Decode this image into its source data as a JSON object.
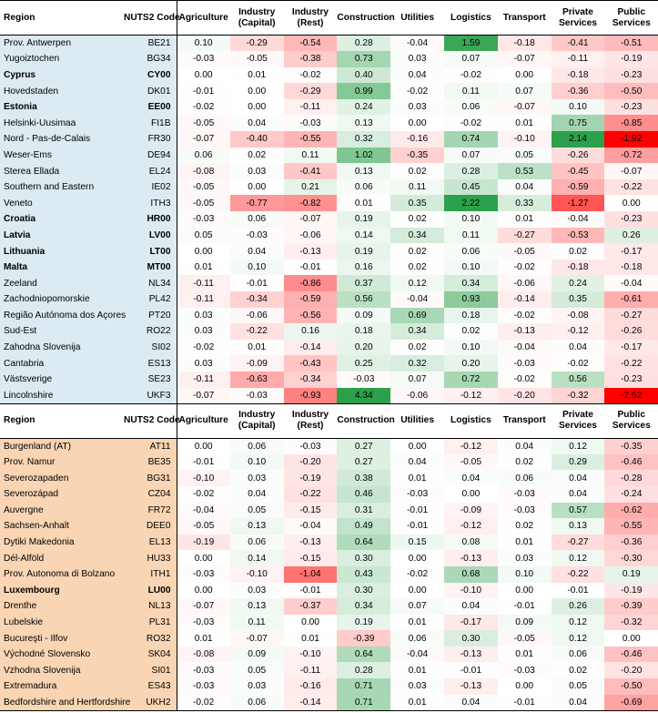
{
  "headers": [
    "Region",
    "NUTS2 Code",
    "Agriculture",
    "Industry (Capital)",
    "Industry (Rest)",
    "Construction",
    "Utilities",
    "Logistics",
    "Transport",
    "Private Services",
    "Public Services"
  ],
  "colors": {
    "positive": "#2ca04a",
    "negative": "#ff0000",
    "panel1_label_bg": "#dcebf1",
    "panel2_label_bg": "#f9d5b4"
  },
  "panel1": [
    {
      "region": "Prov. Antwerpen",
      "code": "BE21",
      "bold": false,
      "values": [
        "0.10",
        "-0.29",
        "-0.54",
        "0.28",
        "-0.04",
        "1.59",
        "-0.18",
        "-0.41",
        "-0.51"
      ]
    },
    {
      "region": "Yugoiztochen",
      "code": "BG34",
      "bold": false,
      "values": [
        "-0.03",
        "-0.05",
        "-0.38",
        "0.73",
        "0.03",
        "0.07",
        "-0.07",
        "-0.11",
        "-0.19"
      ]
    },
    {
      "region": "Cyprus",
      "code": "CY00",
      "bold": true,
      "values": [
        "0.00",
        "0.01",
        "-0.02",
        "0.40",
        "0.04",
        "-0.02",
        "0.00",
        "-0.18",
        "-0.23"
      ]
    },
    {
      "region": "Hovedstaden",
      "code": "DK01",
      "bold": false,
      "values": [
        "-0.01",
        "0.00",
        "-0.29",
        "0.99",
        "-0.02",
        "0.11",
        "0.07",
        "-0.36",
        "-0.50"
      ]
    },
    {
      "region": "Estonia",
      "code": "EE00",
      "bold": true,
      "values": [
        "-0.02",
        "0.00",
        "-0.11",
        "0.24",
        "0.03",
        "0.06",
        "-0.07",
        "0.10",
        "-0.23"
      ]
    },
    {
      "region": "Helsinki-Uusimaa",
      "code": "FI1B",
      "bold": false,
      "values": [
        "-0.05",
        "0.04",
        "-0.03",
        "0.13",
        "0.00",
        "-0.02",
        "0.01",
        "0.75",
        "-0.85"
      ]
    },
    {
      "region": "Nord - Pas-de-Calais",
      "code": "FR30",
      "bold": false,
      "values": [
        "-0.07",
        "-0.40",
        "-0.55",
        "0.32",
        "-0.16",
        "0.74",
        "-0.10",
        "2.14",
        "-1.92"
      ]
    },
    {
      "region": "Weser-Ems",
      "code": "DE94",
      "bold": false,
      "values": [
        "0.06",
        "0.02",
        "0.11",
        "1.02",
        "-0.35",
        "0.07",
        "0.05",
        "-0.26",
        "-0.72"
      ]
    },
    {
      "region": "Sterea Ellada",
      "code": "EL24",
      "bold": false,
      "values": [
        "-0.08",
        "0.03",
        "-0.41",
        "0.13",
        "0.02",
        "0.28",
        "0.53",
        "-0.45",
        "-0.07"
      ]
    },
    {
      "region": "Southern and Eastern",
      "code": "IE02",
      "bold": false,
      "values": [
        "-0.05",
        "0.00",
        "0.21",
        "0.06",
        "0.11",
        "0.45",
        "0.04",
        "-0.59",
        "-0.22"
      ]
    },
    {
      "region": "Veneto",
      "code": "ITH3",
      "bold": false,
      "values": [
        "-0.05",
        "-0.77",
        "-0.82",
        "0.01",
        "0.35",
        "2.22",
        "0.33",
        "-1.27",
        "0.00"
      ]
    },
    {
      "region": "Croatia",
      "code": "HR00",
      "bold": true,
      "values": [
        "-0.03",
        "0.06",
        "-0.07",
        "0.19",
        "0.02",
        "0.10",
        "0.01",
        "-0.04",
        "-0.23"
      ]
    },
    {
      "region": "Latvia",
      "code": "LV00",
      "bold": true,
      "values": [
        "0.05",
        "-0.03",
        "-0.06",
        "0.14",
        "0.34",
        "0.11",
        "-0.27",
        "-0.53",
        "0.26"
      ]
    },
    {
      "region": "Lithuania",
      "code": "LT00",
      "bold": true,
      "values": [
        "0.00",
        "0.04",
        "-0.13",
        "0.19",
        "0.02",
        "0.06",
        "-0.05",
        "0.02",
        "-0.17"
      ]
    },
    {
      "region": "Malta",
      "code": "MT00",
      "bold": true,
      "values": [
        "0.01",
        "0.10",
        "-0.01",
        "0.16",
        "0.02",
        "0.10",
        "-0.02",
        "-0.18",
        "-0.18"
      ]
    },
    {
      "region": "Zeeland",
      "code": "NL34",
      "bold": false,
      "values": [
        "-0.11",
        "-0.01",
        "-0.86",
        "0.37",
        "0.12",
        "0.34",
        "-0.06",
        "0.24",
        "-0.04"
      ]
    },
    {
      "region": "Zachodniopomorskie",
      "code": "PL42",
      "bold": false,
      "values": [
        "-0.11",
        "-0.34",
        "-0.59",
        "0.56",
        "-0.04",
        "0.93",
        "-0.14",
        "0.35",
        "-0.61"
      ]
    },
    {
      "region": "Região Autónoma dos Açores",
      "code": "PT20",
      "bold": false,
      "values": [
        "0.03",
        "-0.06",
        "-0.56",
        "0.09",
        "0.69",
        "0.18",
        "-0.02",
        "-0.08",
        "-0.27"
      ]
    },
    {
      "region": "Sud-Est",
      "code": "RO22",
      "bold": false,
      "values": [
        "0.03",
        "-0.22",
        "0.16",
        "0.18",
        "0.34",
        "0.02",
        "-0.13",
        "-0.12",
        "-0.26"
      ]
    },
    {
      "region": "Zahodna Slovenija",
      "code": "SI02",
      "bold": false,
      "values": [
        "-0.02",
        "0.01",
        "-0.14",
        "0.20",
        "0.02",
        "0.10",
        "-0.04",
        "0.04",
        "-0.17"
      ]
    },
    {
      "region": "Cantabria",
      "code": "ES13",
      "bold": false,
      "values": [
        "0.03",
        "-0.09",
        "-0.43",
        "0.25",
        "0.32",
        "0.20",
        "-0.03",
        "-0.02",
        "-0.22"
      ]
    },
    {
      "region": "Västsverige",
      "code": "SE23",
      "bold": false,
      "values": [
        "-0.11",
        "-0.63",
        "-0.34",
        "-0.03",
        "0.07",
        "0.72",
        "-0.02",
        "0.56",
        "-0.23"
      ]
    },
    {
      "region": "Lincolnshire",
      "code": "UKF3",
      "bold": false,
      "values": [
        "-0.07",
        "-0.03",
        "-0.93",
        "4.34",
        "-0.06",
        "-0.12",
        "-0.20",
        "-0.32",
        "-2.62"
      ]
    }
  ],
  "panel2": [
    {
      "region": "Burgenland (AT)",
      "code": "AT11",
      "bold": false,
      "values": [
        "0.00",
        "0.06",
        "-0.03",
        "0.27",
        "0.00",
        "-0.12",
        "0.04",
        "0.12",
        "-0.35"
      ]
    },
    {
      "region": "Prov. Namur",
      "code": "BE35",
      "bold": false,
      "values": [
        "-0.01",
        "0.10",
        "-0.20",
        "0.27",
        "0.04",
        "-0.05",
        "0.02",
        "0.29",
        "-0.46"
      ]
    },
    {
      "region": "Severozapaden",
      "code": "BG31",
      "bold": false,
      "values": [
        "-0.10",
        "0.03",
        "-0.19",
        "0.38",
        "0.01",
        "0.04",
        "0.06",
        "0.04",
        "-0.28"
      ]
    },
    {
      "region": "Severozápad",
      "code": "CZ04",
      "bold": false,
      "values": [
        "-0.02",
        "0.04",
        "-0.22",
        "0.46",
        "-0.03",
        "0.00",
        "-0.03",
        "0.04",
        "-0.24"
      ]
    },
    {
      "region": "Auvergne",
      "code": "FR72",
      "bold": false,
      "values": [
        "-0.04",
        "0.05",
        "-0.15",
        "0.31",
        "-0.01",
        "-0.09",
        "-0.03",
        "0.57",
        "-0.62"
      ]
    },
    {
      "region": "Sachsen-Anhalt",
      "code": "DEE0",
      "bold": false,
      "values": [
        "-0.05",
        "0.13",
        "-0.04",
        "0.49",
        "-0.01",
        "-0.12",
        "0.02",
        "0.13",
        "-0.55"
      ]
    },
    {
      "region": "Dytiki Makedonia",
      "code": "EL13",
      "bold": false,
      "values": [
        "-0.19",
        "0.06",
        "-0.13",
        "0.64",
        "0.15",
        "0.08",
        "0.01",
        "-0.27",
        "-0.36"
      ]
    },
    {
      "region": "Dél-Alföld",
      "code": "HU33",
      "bold": false,
      "values": [
        "0.00",
        "0.14",
        "-0.15",
        "0.30",
        "0.00",
        "-0.13",
        "0.03",
        "0.12",
        "-0.30"
      ]
    },
    {
      "region": "Prov. Autonoma di Bolzano",
      "code": "ITH1",
      "bold": false,
      "values": [
        "-0.03",
        "-0.10",
        "-1.04",
        "0.43",
        "-0.02",
        "0.68",
        "0.10",
        "-0.22",
        "0.19"
      ]
    },
    {
      "region": "Luxembourg",
      "code": "LU00",
      "bold": true,
      "values": [
        "0.00",
        "0.03",
        "-0.01",
        "0.30",
        "0.00",
        "-0.10",
        "0.00",
        "-0.01",
        "-0.19"
      ]
    },
    {
      "region": "Drenthe",
      "code": "NL13",
      "bold": false,
      "values": [
        "-0.07",
        "0.13",
        "-0.37",
        "0.34",
        "0.07",
        "0.04",
        "-0.01",
        "0.26",
        "-0.39"
      ]
    },
    {
      "region": "Lubelskie",
      "code": "PL31",
      "bold": false,
      "values": [
        "-0.03",
        "0.11",
        "0.00",
        "0.19",
        "0.01",
        "-0.17",
        "0.09",
        "0.12",
        "-0.32"
      ]
    },
    {
      "region": "Bucureşti - Ilfov",
      "code": "RO32",
      "bold": false,
      "values": [
        "0.01",
        "-0.07",
        "0.01",
        "-0.39",
        "0.06",
        "0.30",
        "-0.05",
        "0.12",
        "0.00"
      ]
    },
    {
      "region": "Východné Slovensko",
      "code": "SK04",
      "bold": false,
      "values": [
        "-0.08",
        "0.09",
        "-0.10",
        "0.64",
        "-0.04",
        "-0.13",
        "0.01",
        "0.06",
        "-0.46"
      ]
    },
    {
      "region": "Vzhodna Slovenija",
      "code": "SI01",
      "bold": false,
      "values": [
        "-0.03",
        "0.05",
        "-0.11",
        "0.28",
        "0.01",
        "-0.01",
        "-0.03",
        "0.02",
        "-0.20"
      ]
    },
    {
      "region": "Extremadura",
      "code": "ES43",
      "bold": false,
      "values": [
        "-0.03",
        "0.03",
        "-0.16",
        "0.71",
        "0.03",
        "-0.13",
        "0.00",
        "0.05",
        "-0.50"
      ]
    },
    {
      "region": "Bedfordshire and Hertfordshire",
      "code": "UKH2",
      "bold": false,
      "values": [
        "-0.02",
        "0.06",
        "-0.14",
        "0.71",
        "0.01",
        "0.04",
        "-0.01",
        "0.04",
        "-0.69"
      ]
    }
  ]
}
